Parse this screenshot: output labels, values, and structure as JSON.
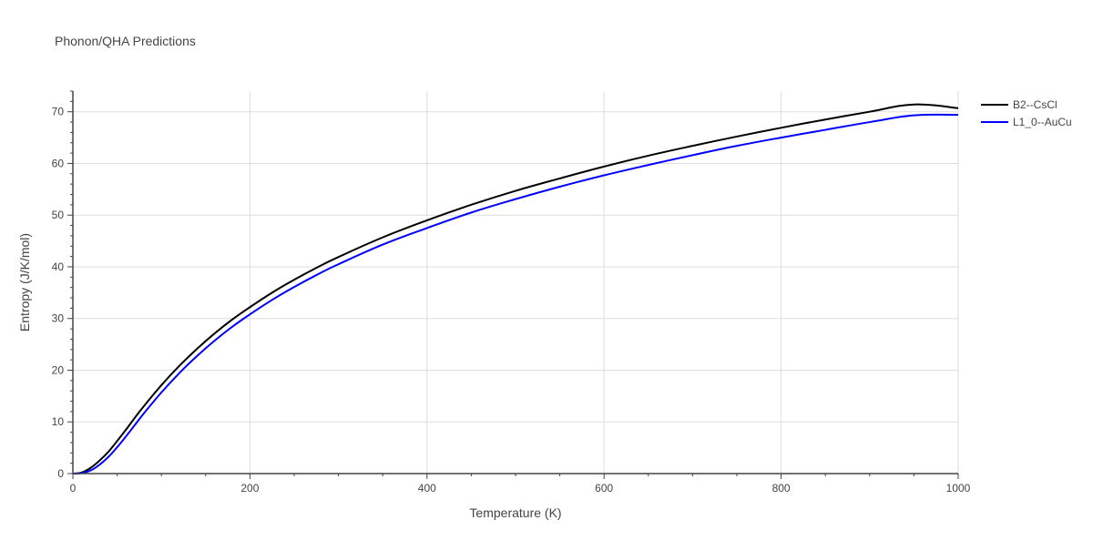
{
  "chart_data": {
    "type": "line",
    "title": "Phonon/QHA Predictions",
    "xlabel": "Temperature (K)",
    "ylabel": "Entropy (J/K/mol)",
    "xlim": [
      0,
      1000
    ],
    "ylim": [
      0,
      74
    ],
    "x_ticks": [
      0,
      200,
      400,
      600,
      800,
      1000
    ],
    "y_ticks": [
      0,
      10,
      20,
      30,
      40,
      50,
      60,
      70
    ],
    "grid": true,
    "legend_position": "top-right",
    "series": [
      {
        "name": "B2--CsCl",
        "color": "#000000",
        "x": [
          0,
          10,
          20,
          30,
          40,
          50,
          60,
          70,
          80,
          100,
          120,
          140,
          160,
          180,
          200,
          225,
          250,
          275,
          300,
          350,
          400,
          450,
          500,
          550,
          600,
          650,
          700,
          750,
          800,
          850,
          900,
          950,
          1000
        ],
        "y": [
          0,
          0.2,
          1.1,
          2.5,
          4.2,
          6.3,
          8.5,
          10.8,
          13.0,
          17.1,
          20.8,
          24.1,
          27.1,
          29.8,
          32.2,
          35.0,
          37.5,
          39.8,
          41.9,
          45.7,
          49.0,
          52.0,
          54.7,
          57.1,
          59.4,
          61.5,
          63.4,
          65.2,
          66.9,
          68.5,
          70.0,
          71.4,
          70.7
        ]
      },
      {
        "name": "L1_0--AuCu",
        "color": "#0000ff",
        "x": [
          0,
          10,
          20,
          30,
          40,
          50,
          60,
          70,
          80,
          100,
          120,
          140,
          160,
          180,
          200,
          225,
          250,
          275,
          300,
          350,
          400,
          450,
          500,
          550,
          600,
          650,
          700,
          750,
          800,
          850,
          900,
          950,
          1000
        ],
        "y": [
          0,
          0.1,
          0.6,
          1.7,
          3.2,
          5.1,
          7.2,
          9.4,
          11.6,
          15.7,
          19.4,
          22.7,
          25.7,
          28.4,
          30.8,
          33.6,
          36.1,
          38.4,
          40.5,
          44.3,
          47.5,
          50.5,
          53.1,
          55.5,
          57.7,
          59.7,
          61.6,
          63.4,
          65.0,
          66.5,
          68.0,
          69.3,
          69.4
        ]
      }
    ]
  }
}
